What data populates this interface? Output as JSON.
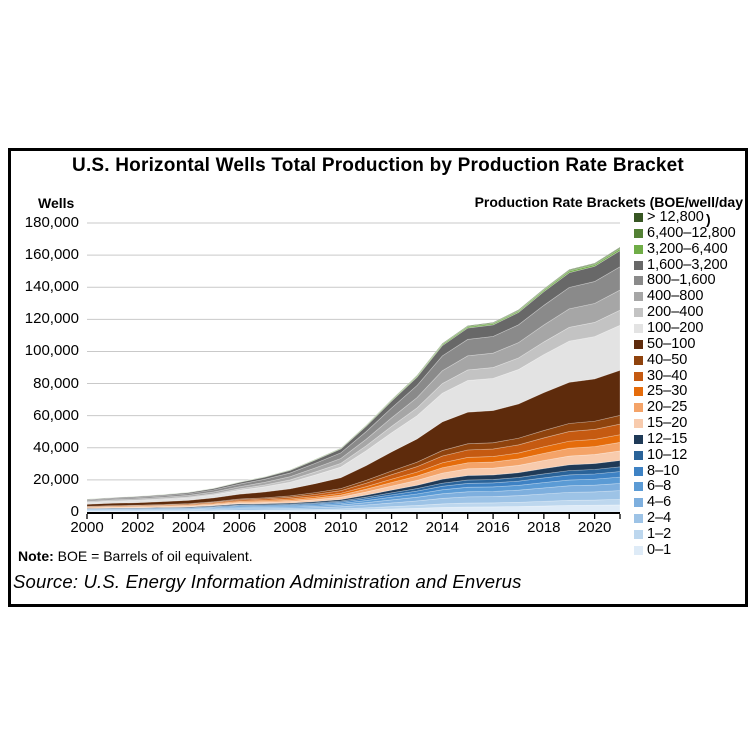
{
  "panel": {
    "title": "U.S. Horizontal Wells Total Production by Production Rate Bracket",
    "y_axis_units_label": "Wells",
    "legend_title": "Production Rate Brackets (BOE/well/day",
    "legend_title_overflow": ")",
    "note_label": "Note:",
    "note_body": " BOE = Barrels of oil equivalent.",
    "source": "Source: U.S. Energy Information Administration and Enverus"
  },
  "style": {
    "gridline_color": "#c9c9c9",
    "axis_color": "#000000",
    "band_separator_color": "rgba(255,255,255,0.35)"
  },
  "chart_data": {
    "type": "area",
    "stacked": true,
    "title": "U.S. Horizontal Wells Total Production by Production Rate Bracket",
    "xlabel": "",
    "ylabel": "Wells",
    "legend_title": "Production Rate Brackets (BOE/well/day)",
    "legend_position": "right",
    "grid": "horizontal",
    "ylim": [
      0,
      180000
    ],
    "y_ticks": [
      0,
      20000,
      40000,
      60000,
      80000,
      100000,
      120000,
      140000,
      160000,
      180000
    ],
    "y_tick_labels": [
      "0",
      "20,000",
      "40,000",
      "60,000",
      "80,000",
      "100,000",
      "120,000",
      "140,000",
      "160,000",
      "180,000"
    ],
    "x": [
      2000,
      2001,
      2002,
      2003,
      2004,
      2005,
      2006,
      2007,
      2008,
      2009,
      2010,
      2011,
      2012,
      2013,
      2014,
      2015,
      2016,
      2017,
      2018,
      2019,
      2020,
      2021
    ],
    "x_tick_years": [
      2000,
      2002,
      2004,
      2006,
      2008,
      2010,
      2012,
      2014,
      2016,
      2018,
      2020
    ],
    "totals_estimated": [
      8000,
      8700,
      9500,
      10500,
      12000,
      14500,
      18000,
      21500,
      26000,
      33000,
      40000,
      54000,
      70000,
      85000,
      105000,
      116000,
      118000,
      126000,
      139000,
      151000,
      155000,
      165000
    ],
    "series_order": "bottom-to-top; legend lists top bracket first",
    "series": [
      {
        "name": "0–1",
        "color": "#DEEBF7",
        "values": [
          300,
          350,
          350,
          400,
          400,
          550,
          700,
          750,
          800,
          900,
          1100,
          1450,
          1900,
          2300,
          2850,
          3150,
          3200,
          3400,
          3750,
          4100,
          4200,
          4450
        ]
      },
      {
        "name": "1–2",
        "color": "#BDD7EE",
        "values": [
          200,
          300,
          300,
          300,
          350,
          400,
          550,
          550,
          600,
          700,
          850,
          1150,
          1450,
          1800,
          2200,
          2450,
          2500,
          2650,
          2900,
          3150,
          3250,
          3450
        ]
      },
      {
        "name": "2–4",
        "color": "#9DC3E6",
        "values": [
          350,
          400,
          400,
          500,
          550,
          700,
          850,
          850,
          900,
          1100,
          1300,
          1800,
          2300,
          2800,
          3450,
          3850,
          3900,
          4150,
          4600,
          5000,
          5100,
          5450
        ]
      },
      {
        "name": "4–6",
        "color": "#7EAFDE",
        "values": [
          300,
          350,
          350,
          400,
          400,
          550,
          700,
          750,
          800,
          900,
          1100,
          1450,
          1900,
          2300,
          2850,
          3150,
          3200,
          3400,
          3750,
          4100,
          4200,
          4450
        ]
      },
      {
        "name": "6–8",
        "color": "#5B9BD5",
        "values": [
          300,
          300,
          350,
          350,
          400,
          500,
          650,
          650,
          700,
          800,
          950,
          1300,
          1700,
          2050,
          2500,
          2800,
          2850,
          3000,
          3350,
          3600,
          3700,
          3950
        ]
      },
      {
        "name": "8–10",
        "color": "#3E82C4",
        "values": [
          200,
          300,
          300,
          300,
          350,
          400,
          550,
          550,
          600,
          700,
          850,
          1150,
          1450,
          1800,
          2200,
          2450,
          2500,
          2650,
          2900,
          3150,
          3250,
          3450
        ]
      },
      {
        "name": "10–12",
        "color": "#2A6399",
        "values": [
          200,
          200,
          200,
          300,
          300,
          350,
          400,
          450,
          500,
          600,
          700,
          950,
          1250,
          1550,
          1900,
          2100,
          2100,
          2250,
          2500,
          2700,
          2800,
          2950
        ]
      },
      {
        "name": "12–15",
        "color": "#1F3A57",
        "values": [
          300,
          300,
          350,
          350,
          400,
          500,
          650,
          650,
          700,
          800,
          950,
          1300,
          1700,
          2050,
          2500,
          2800,
          2850,
          3000,
          3350,
          3600,
          3700,
          3950
        ]
      },
      {
        "name": "15–20",
        "color": "#F8CBAD",
        "values": [
          300,
          300,
          350,
          400,
          450,
          500,
          650,
          800,
          950,
          1200,
          1450,
          1950,
          2500,
          3050,
          3800,
          4200,
          4250,
          4550,
          5000,
          5450,
          5600,
          5950
        ]
      },
      {
        "name": "20–25",
        "color": "#F4A368",
        "values": [
          250,
          300,
          300,
          350,
          400,
          450,
          600,
          700,
          850,
          1050,
          1300,
          1750,
          2250,
          2700,
          3350,
          3700,
          3800,
          4050,
          4450,
          4850,
          4950,
          5300
        ]
      },
      {
        "name": "25–30",
        "color": "#E56C0B",
        "values": [
          250,
          250,
          300,
          300,
          350,
          400,
          500,
          600,
          750,
          950,
          1150,
          1550,
          2050,
          2450,
          3050,
          3350,
          3400,
          3650,
          4050,
          4400,
          4500,
          4800
        ]
      },
      {
        "name": "30–40",
        "color": "#C55A11",
        "values": [
          300,
          350,
          400,
          400,
          500,
          600,
          700,
          850,
          1050,
          1300,
          1600,
          2150,
          2800,
          3400,
          4200,
          4650,
          4700,
          5050,
          5550,
          6050,
          6200,
          6600
        ]
      },
      {
        "name": "40–50",
        "color": "#8F430D",
        "values": [
          250,
          300,
          300,
          350,
          400,
          500,
          600,
          700,
          850,
          1100,
          1300,
          1800,
          2300,
          2800,
          3450,
          3850,
          3900,
          4150,
          4600,
          5000,
          5100,
          5450
        ]
      },
      {
        "name": "50–100",
        "color": "#5E2B0C",
        "values": [
          1350,
          1500,
          1600,
          1800,
          2050,
          2450,
          3050,
          3650,
          4400,
          5600,
          6800,
          9200,
          11900,
          14450,
          17850,
          19700,
          20050,
          21400,
          23650,
          25650,
          26350,
          28050
        ]
      },
      {
        "name": "100–200",
        "color": "#E3E3E3",
        "values": [
          1000,
          1150,
          1250,
          1400,
          1600,
          1900,
          2400,
          3200,
          4100,
          5400,
          6600,
          9200,
          11900,
          14450,
          17850,
          19700,
          20050,
          21400,
          23650,
          25650,
          26350,
          28050
        ]
      },
      {
        "name": "200–400",
        "color": "#C3C3C3",
        "values": [
          350,
          400,
          450,
          500,
          550,
          650,
          850,
          1150,
          1450,
          1900,
          2300,
          3100,
          4000,
          4850,
          6000,
          6600,
          6750,
          7200,
          7900,
          8600,
          8850,
          9400
        ]
      },
      {
        "name": "400–800",
        "color": "#A6A6A6",
        "values": [
          500,
          600,
          700,
          800,
          900,
          1100,
          1350,
          1650,
          2000,
          2500,
          3050,
          4100,
          5300,
          6450,
          8000,
          8800,
          8950,
          9550,
          10550,
          11500,
          11800,
          12550
        ]
      },
      {
        "name": "800–1,600",
        "color": "#8A8A8A",
        "values": [
          700,
          750,
          850,
          900,
          1050,
          1300,
          1600,
          1900,
          2300,
          2900,
          3500,
          4750,
          6150,
          7500,
          9250,
          10200,
          10400,
          11100,
          12250,
          13300,
          13650,
          14500
        ]
      },
      {
        "name": "1,600–3,200",
        "color": "#686868",
        "values": [
          500,
          550,
          600,
          650,
          750,
          900,
          1100,
          1300,
          1600,
          2000,
          2450,
          3300,
          4250,
          5200,
          6400,
          7100,
          7200,
          7700,
          8500,
          9200,
          9450,
          10050
        ]
      },
      {
        "name": "3,200–6,400",
        "color": "#70AD47",
        "values": [
          60,
          60,
          70,
          70,
          80,
          100,
          130,
          150,
          180,
          230,
          280,
          380,
          490,
          600,
          740,
          810,
          830,
          880,
          970,
          1060,
          1080,
          1160
        ]
      },
      {
        "name": "6,400–12,800",
        "color": "#538135",
        "values": [
          30,
          35,
          40,
          40,
          50,
          60,
          70,
          90,
          100,
          130,
          160,
          220,
          280,
          340,
          420,
          460,
          470,
          500,
          560,
          600,
          620,
          660
        ]
      },
      {
        "name": "> 12,800",
        "color": "#375623",
        "values": [
          15,
          20,
          20,
          20,
          25,
          30,
          35,
          45,
          50,
          65,
          80,
          110,
          140,
          170,
          210,
          230,
          240,
          250,
          280,
          300,
          310,
          330
        ]
      }
    ]
  }
}
